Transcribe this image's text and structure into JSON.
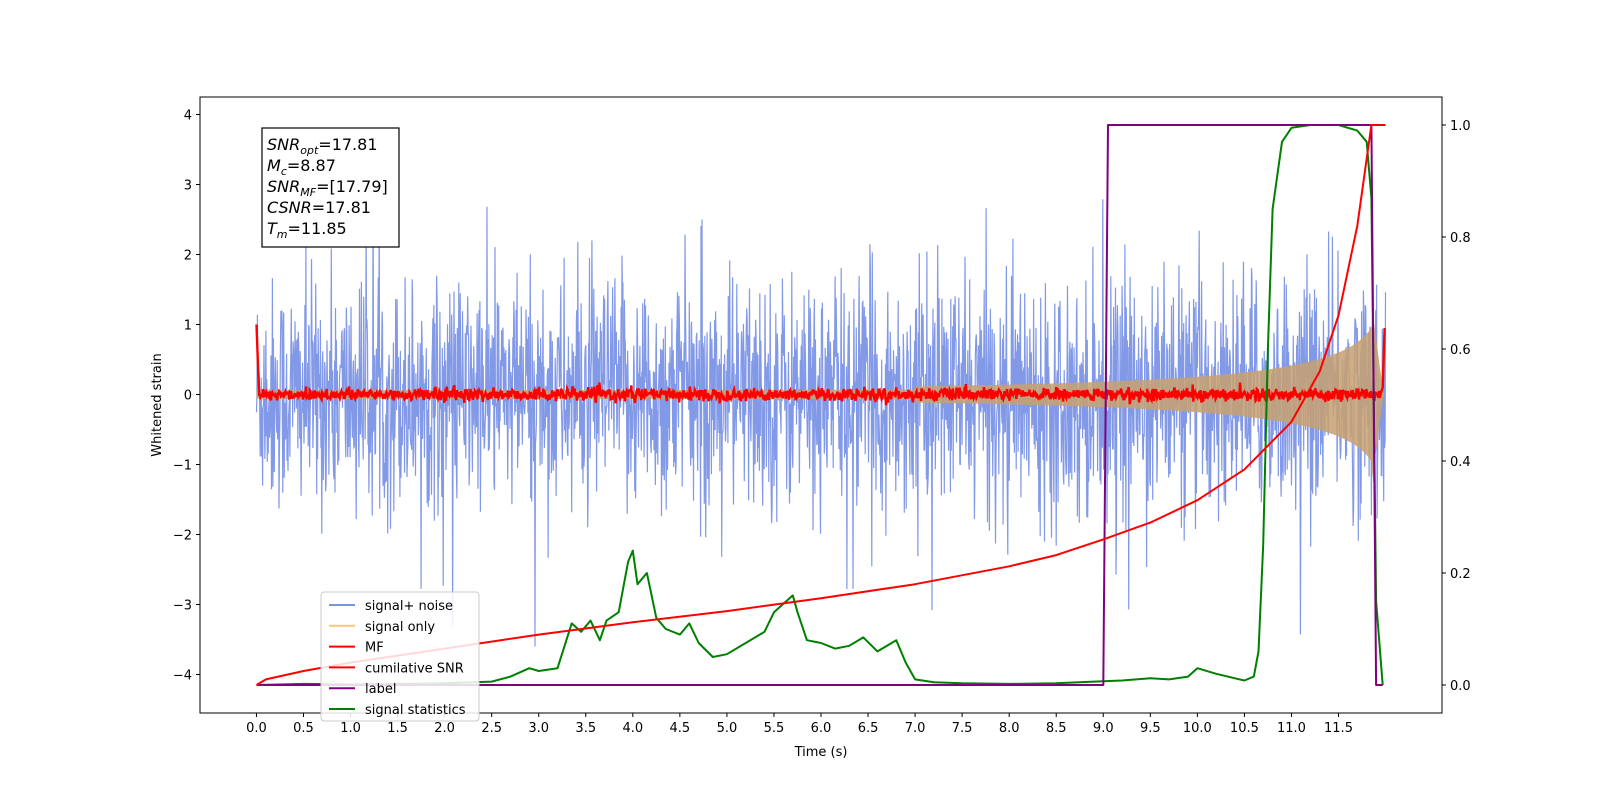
{
  "chart_data": {
    "type": "line",
    "xlabel": "Time (s)",
    "ylabel": "Whitened strain",
    "xlim": [
      -0.6,
      12.6
    ],
    "ylim": [
      -4.55,
      4.25
    ],
    "y2lim": [
      -0.05,
      1.05
    ],
    "x_ticks": [
      "0.0",
      "0.5",
      "1.0",
      "1.5",
      "2.0",
      "2.5",
      "3.0",
      "3.5",
      "4.0",
      "4.5",
      "5.0",
      "5.5",
      "6.0",
      "6.5",
      "7.0",
      "7.5",
      "8.0",
      "8.5",
      "9.0",
      "9.5",
      "10.0",
      "10.5",
      "11.0",
      "11.5"
    ],
    "y_ticks": [
      "4",
      "3",
      "2",
      "1",
      "0",
      "−1",
      "−2",
      "−3",
      "−4"
    ],
    "y2_ticks": [
      "1.0",
      "0.8",
      "0.6",
      "0.4",
      "0.2",
      "0.0"
    ],
    "grid": false,
    "legend_position": "lower-left",
    "annotation": {
      "lines": [
        {
          "sym": "SNR",
          "sub": "opt",
          "value": "=17.81"
        },
        {
          "sym": "M",
          "sub": "c",
          "value": "=8.87"
        },
        {
          "sym": "SNR",
          "sub": "MF",
          "value": "=[17.79]"
        },
        {
          "sym": "CSNR",
          "sub": "",
          "value": "=17.81"
        },
        {
          "sym": "T",
          "sub": "m",
          "value": "=11.85"
        }
      ]
    },
    "series": [
      {
        "name": "signal+ noise",
        "color": "#7b93e6",
        "axis": "left",
        "style": "noisy band, amplitude ~±2.2 with spikes to ±3.8",
        "x_range": [
          0.0,
          12.0
        ]
      },
      {
        "name": "signal only",
        "color": "#f5c97a",
        "axis": "left",
        "style": "chirp envelope growing to ±1.2 near 11.8",
        "x_range": [
          0.0,
          12.0
        ]
      },
      {
        "name": "MF",
        "color": "#ff0000",
        "axis": "left",
        "style": "noisy around 0, amplitude ~0.1",
        "x_range": [
          0.0,
          12.0
        ]
      },
      {
        "name": "cumilative SNR",
        "color": "#ff0000",
        "axis": "right",
        "x": [
          0.0,
          0.1,
          0.5,
          1.0,
          2.0,
          3.0,
          4.0,
          5.0,
          6.0,
          7.0,
          8.0,
          8.5,
          9.0,
          9.5,
          10.0,
          10.5,
          11.0,
          11.3,
          11.5,
          11.7,
          11.8,
          11.85,
          12.0
        ],
        "y": [
          0.0,
          0.01,
          0.025,
          0.04,
          0.065,
          0.09,
          0.112,
          0.132,
          0.155,
          0.18,
          0.212,
          0.232,
          0.26,
          0.29,
          0.33,
          0.385,
          0.47,
          0.56,
          0.66,
          0.82,
          0.94,
          1.0,
          1.0
        ]
      },
      {
        "name": "label",
        "color": "#800080",
        "axis": "right",
        "x": [
          0.0,
          9.0,
          9.05,
          11.85,
          11.9,
          11.97
        ],
        "y": [
          0.0,
          0.0,
          1.0,
          1.0,
          0.0,
          0.0
        ]
      },
      {
        "name": "signal statistics",
        "color": "#008000",
        "axis": "right",
        "x": [
          0.0,
          0.5,
          1.0,
          1.5,
          2.0,
          2.5,
          2.7,
          2.9,
          3.0,
          3.2,
          3.35,
          3.45,
          3.55,
          3.65,
          3.72,
          3.85,
          3.95,
          4.0,
          4.05,
          4.15,
          4.25,
          4.35,
          4.5,
          4.6,
          4.7,
          4.85,
          5.0,
          5.2,
          5.4,
          5.5,
          5.6,
          5.7,
          5.75,
          5.85,
          6.0,
          6.15,
          6.3,
          6.45,
          6.6,
          6.8,
          6.9,
          7.0,
          7.2,
          7.5,
          8.0,
          8.5,
          8.9,
          9.2,
          9.5,
          9.7,
          9.9,
          10.0,
          10.2,
          10.4,
          10.5,
          10.6,
          10.65,
          10.7,
          10.75,
          10.8,
          10.9,
          11.0,
          11.2,
          11.5,
          11.7,
          11.8,
          11.85,
          11.9,
          11.97
        ],
        "y": [
          0.0,
          0.002,
          0.001,
          0.002,
          0.003,
          0.006,
          0.015,
          0.03,
          0.025,
          0.03,
          0.11,
          0.095,
          0.115,
          0.08,
          0.115,
          0.13,
          0.22,
          0.24,
          0.18,
          0.2,
          0.12,
          0.1,
          0.09,
          0.11,
          0.075,
          0.05,
          0.055,
          0.075,
          0.095,
          0.13,
          0.145,
          0.16,
          0.13,
          0.08,
          0.075,
          0.065,
          0.07,
          0.085,
          0.06,
          0.08,
          0.04,
          0.01,
          0.005,
          0.003,
          0.002,
          0.003,
          0.006,
          0.008,
          0.012,
          0.01,
          0.015,
          0.03,
          0.02,
          0.012,
          0.008,
          0.015,
          0.06,
          0.25,
          0.6,
          0.85,
          0.97,
          0.995,
          1.0,
          1.0,
          0.99,
          0.97,
          0.87,
          0.15,
          0.0
        ]
      }
    ]
  }
}
